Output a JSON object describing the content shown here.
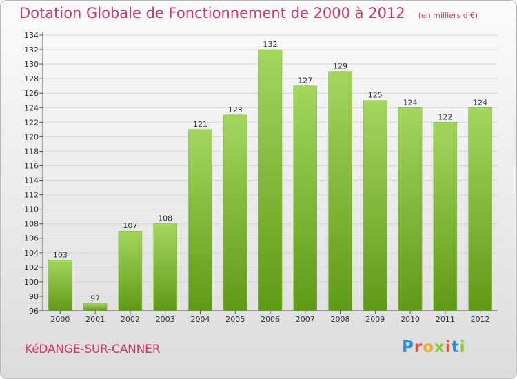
{
  "header": {
    "title": "Dotation Globale de Fonctionnement de 2000 à 2012",
    "unit": "(en milliers d'€)"
  },
  "footer": {
    "commune": "KéDANGE-SUR-CANNER",
    "logo_letters": [
      "P",
      "r",
      "o",
      "x",
      "i",
      "t",
      "i"
    ]
  },
  "colors": {
    "title": "#d4356a",
    "bar_top": "#a4d65e",
    "bar_bottom": "#5f9a15",
    "logo": [
      "#2f8fd6",
      "#e64d3c",
      "#f2a72e",
      "#8cc63e",
      "#e64d3c",
      "#2f8fd6",
      "#8cc63e"
    ]
  },
  "chart_data": {
    "type": "bar",
    "title": "Dotation Globale de Fonctionnement de 2000 à 2012",
    "subtitle": "(en milliers d'€)",
    "xlabel": "",
    "ylabel": "",
    "categories": [
      "2000",
      "2001",
      "2002",
      "2003",
      "2004",
      "2005",
      "2006",
      "2007",
      "2008",
      "2009",
      "2010",
      "2011",
      "2012"
    ],
    "values": [
      103,
      97,
      107,
      108,
      121,
      123,
      132,
      127,
      129,
      125,
      124,
      122,
      124
    ],
    "ylim": [
      96,
      134
    ],
    "ytick_step": 2,
    "grid": true,
    "legend": "none"
  }
}
